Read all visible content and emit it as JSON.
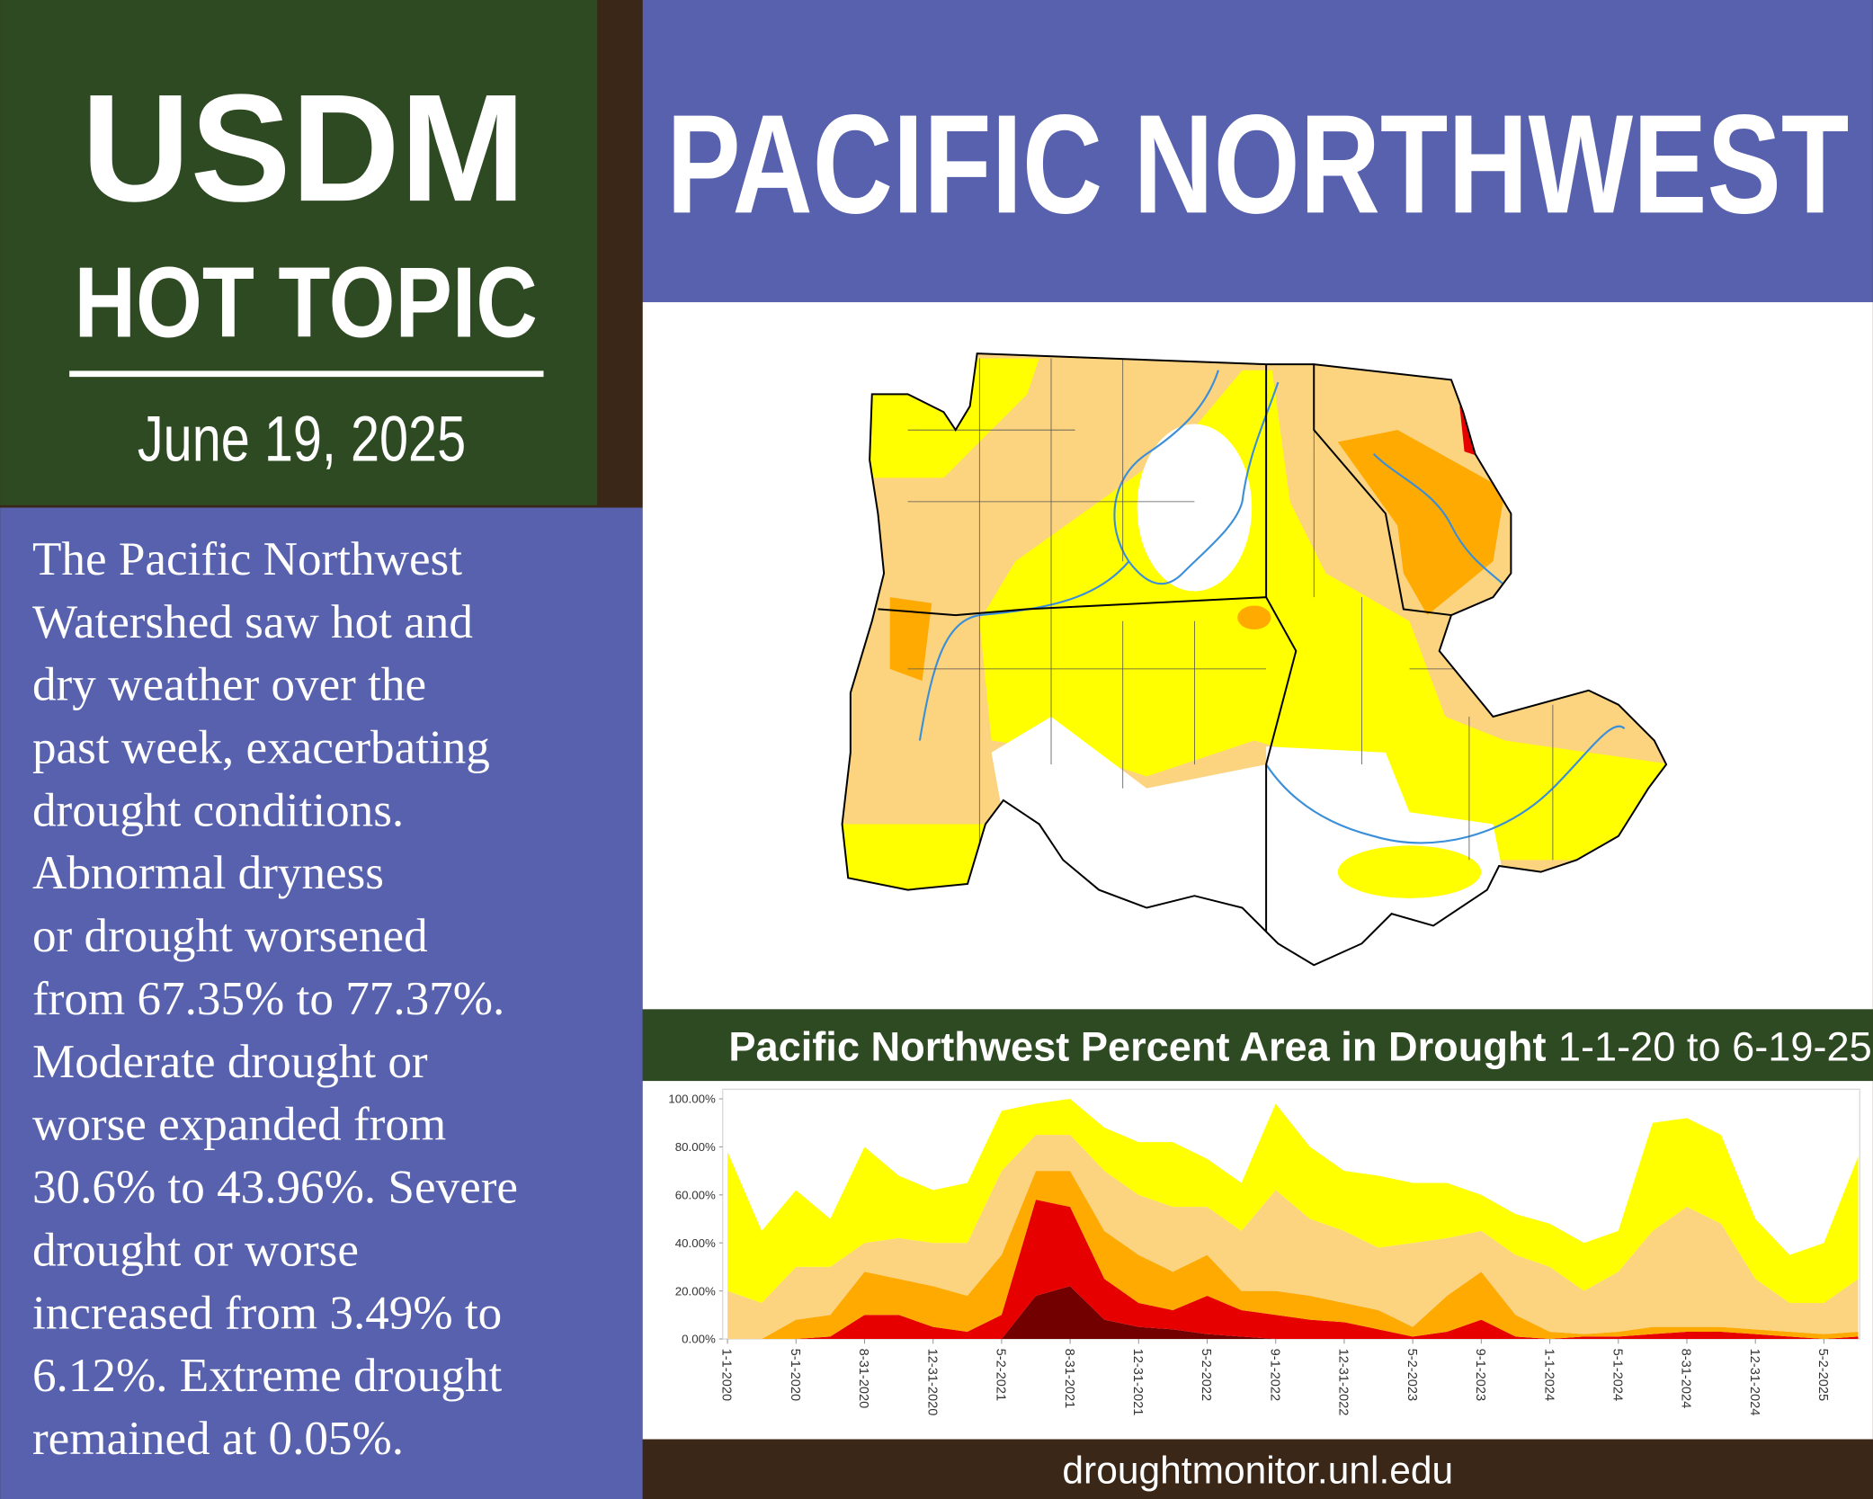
{
  "header": {
    "title": "USDM",
    "subtitle": "HOT TOPIC",
    "date": "June 19, 2025"
  },
  "body": {
    "lines": [
      "The Pacific Northwest",
      "Watershed saw hot and",
      "dry weather over the",
      "past week, exacerbating",
      "drought conditions.",
      "Abnormal dryness",
      "or drought worsened",
      "from 67.35% to 77.37%.",
      "Moderate drought or",
      "worse expanded from",
      "30.6% to 43.96%. Severe",
      "drought or worse",
      "increased from 3.49% to",
      "6.12%. Extreme drought",
      "remained at 0.05%."
    ]
  },
  "banner": {
    "title": "PACIFIC NORTHWEST"
  },
  "chart_data": {
    "type": "area",
    "stacked": true,
    "title": "Pacific Northwest Percent Area in Drought",
    "subtitle": "1-1-20 to 6-19-25",
    "categories": [
      "1-1-2020",
      null,
      "5-1-2020",
      null,
      "8-31-2020",
      null,
      "12-31-2020",
      null,
      "5-2-2021",
      null,
      "8-31-2021",
      null,
      "12-31-2021",
      null,
      "5-2-2022",
      null,
      "9-1-2022",
      null,
      "12-31-2022",
      null,
      "5-2-2023",
      null,
      "9-1-2023",
      null,
      "1-1-2024",
      null,
      "5-1-2024",
      null,
      "8-31-2024",
      null,
      "12-31-2024",
      null,
      "5-2-2025",
      null
    ],
    "series": [
      {
        "color": "#730000",
        "values": [
          0,
          0,
          0,
          0,
          0,
          0,
          0,
          0,
          0,
          18,
          22,
          8,
          5,
          4,
          2,
          1,
          0,
          0,
          0,
          0,
          0,
          0,
          0,
          0,
          0,
          0,
          0,
          0,
          0,
          0,
          0,
          0,
          0,
          0
        ]
      },
      {
        "color": "#e60000",
        "values": [
          0,
          0,
          0,
          1,
          10,
          10,
          5,
          3,
          10,
          40,
          33,
          17,
          10,
          8,
          16,
          11,
          10,
          8,
          7,
          4,
          1,
          3,
          8,
          1,
          0,
          1,
          1,
          2,
          3,
          3,
          2,
          1,
          0,
          1
        ]
      },
      {
        "color": "#ffaa00",
        "values": [
          0,
          0,
          8,
          9,
          18,
          15,
          17,
          15,
          25,
          12,
          15,
          20,
          20,
          16,
          17,
          8,
          10,
          10,
          8,
          8,
          4,
          15,
          20,
          9,
          3,
          1,
          2,
          3,
          2,
          2,
          2,
          2,
          2,
          2
        ]
      },
      {
        "color": "#fcd37f",
        "values": [
          20,
          15,
          22,
          20,
          12,
          17,
          18,
          22,
          35,
          15,
          15,
          25,
          25,
          27,
          20,
          25,
          42,
          32,
          30,
          26,
          35,
          24,
          17,
          25,
          27,
          18,
          25,
          40,
          50,
          43,
          21,
          12,
          13,
          22
        ]
      },
      {
        "color": "#ffff00",
        "values": [
          58,
          30,
          32,
          20,
          40,
          26,
          22,
          25,
          25,
          13,
          15,
          18,
          22,
          27,
          20,
          20,
          36,
          30,
          25,
          30,
          25,
          23,
          15,
          17,
          18,
          20,
          17,
          45,
          37,
          37,
          25,
          20,
          25,
          51
        ]
      }
    ],
    "ylim": [
      0,
      100
    ],
    "yticks": [
      {
        "value": 0,
        "label": "0.00%"
      },
      {
        "value": 20,
        "label": "20.00%"
      },
      {
        "value": 40,
        "label": "40.00%"
      },
      {
        "value": 60,
        "label": "60.00%"
      },
      {
        "value": 80,
        "label": "80.00%"
      },
      {
        "value": 100,
        "label": "100.00%"
      }
    ]
  },
  "footer": {
    "text": "droughtmonitor.unl.edu"
  }
}
